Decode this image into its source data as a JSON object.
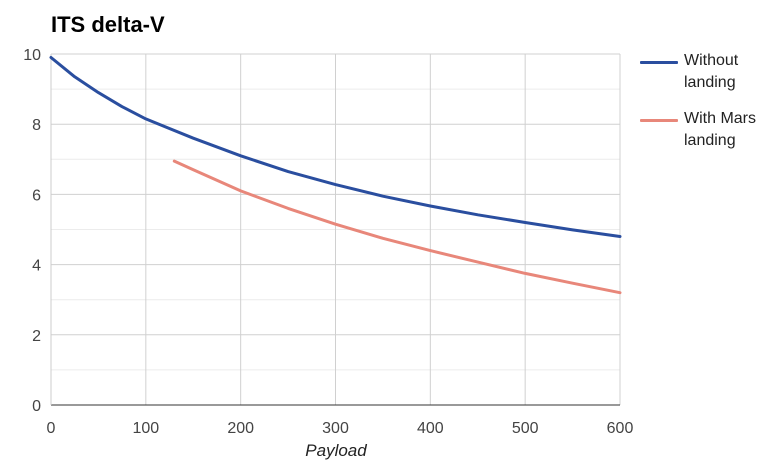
{
  "chart_data": {
    "type": "line",
    "title": "ITS delta-V",
    "xlabel": "Payload",
    "ylabel": "",
    "xlim": [
      0,
      600
    ],
    "ylim": [
      0,
      10
    ],
    "xticks": [
      0,
      100,
      200,
      300,
      400,
      500,
      600
    ],
    "yticks": [
      0,
      2,
      4,
      6,
      8,
      10
    ],
    "grid": true,
    "legend_position": "right",
    "series": [
      {
        "name": "Without landing",
        "color": "#2a4e9f",
        "x": [
          0,
          25,
          50,
          75,
          100,
          150,
          200,
          250,
          300,
          350,
          400,
          450,
          500,
          550,
          600
        ],
        "y": [
          9.9,
          9.35,
          8.9,
          8.5,
          8.15,
          7.6,
          7.1,
          6.65,
          6.28,
          5.95,
          5.67,
          5.42,
          5.2,
          4.99,
          4.8
        ]
      },
      {
        "name": "With Mars landing",
        "color": "#e8877a",
        "x": [
          130,
          150,
          200,
          250,
          300,
          350,
          400,
          450,
          500,
          550,
          600
        ],
        "y": [
          6.95,
          6.7,
          6.1,
          5.6,
          5.15,
          4.75,
          4.4,
          4.07,
          3.75,
          3.47,
          3.2
        ]
      }
    ]
  }
}
